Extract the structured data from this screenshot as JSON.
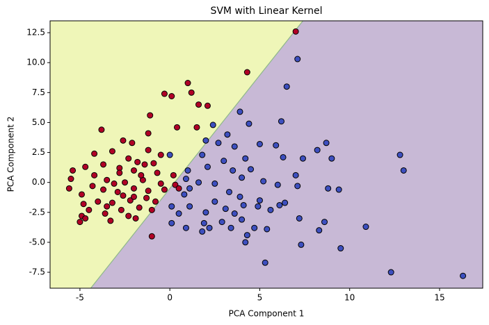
{
  "chart_data": {
    "type": "scatter",
    "title": "SVM with Linear Kernel",
    "x_label": "PCA Component 1",
    "y_label": "PCA Component 2",
    "xlim": [
      -6.66,
      17.4
    ],
    "ylim": [
      -8.83,
      13.49
    ],
    "xticks": [
      -5,
      0,
      5,
      10,
      15
    ],
    "yticks": [
      -7.5,
      {
        "value": -5,
        "label": "-5.0"
      },
      -2.5,
      {
        "value": 0,
        "label": "0.0"
      },
      2.5,
      {
        "value": 5,
        "label": "5.0"
      },
      7.5,
      {
        "value": 10,
        "label": "10.0"
      },
      12.5
    ],
    "decision_boundary": {
      "x": [
        -4.4,
        7.4
      ],
      "y": [
        -8.83,
        13.49
      ],
      "color": "#8fb88a"
    },
    "region_colors": [
      "#eff6b8",
      "#c8b9d6"
    ],
    "series": [
      {
        "color": "#b10026",
        "x": [
          7.0,
          4.3,
          1.0,
          -0.3,
          0.1,
          1.2,
          1.6,
          2.1,
          -1.1,
          -3.8,
          -1.2,
          0.4,
          1.5,
          -2.1,
          -2.6,
          -1.2,
          -4.2,
          -3.2,
          -2.3,
          -0.5,
          -1.4,
          -3.7,
          -4.7,
          -5.4,
          -2.8,
          -2.0,
          -0.7,
          0.2,
          -5.5,
          -4.2,
          -3.5,
          -2.5,
          -1.5,
          -0.5,
          0.3,
          -5.6,
          -4.9,
          -3.7,
          -2.9,
          -2.0,
          -1.2,
          -0.3,
          0.5,
          -4.8,
          -4.0,
          -3.2,
          -2.2,
          -1.3,
          -0.8,
          -4.5,
          -3.6,
          -2.7,
          -1.7,
          -4.9,
          -4.7,
          -5.0,
          -3.3,
          -2.3,
          -1.9,
          -3.5,
          -2.0,
          -1.0,
          -1.0,
          -2.8,
          -1.8,
          -0.9,
          -3.1,
          -4.3,
          -2.6,
          -1.6
        ],
        "y": [
          12.6,
          9.2,
          8.3,
          7.4,
          7.2,
          7.5,
          6.5,
          6.4,
          5.6,
          4.4,
          4.1,
          4.6,
          4.6,
          3.3,
          3.5,
          2.7,
          2.4,
          2.6,
          2.0,
          2.3,
          1.5,
          1.5,
          1.3,
          1.0,
          1.2,
          1.0,
          0.8,
          0.6,
          0.3,
          0.6,
          0.2,
          0.0,
          0.2,
          -0.1,
          -0.2,
          -0.5,
          -1.0,
          -0.6,
          -0.8,
          -0.5,
          -0.7,
          -0.6,
          -0.5,
          -1.8,
          -1.6,
          -1.7,
          -1.5,
          -1.3,
          -1.6,
          -2.3,
          -2.6,
          -2.3,
          -2.1,
          -2.8,
          -3.0,
          -3.3,
          -3.2,
          -2.8,
          -3.0,
          -2.0,
          -1.2,
          -2.3,
          -4.5,
          0.8,
          1.7,
          1.6,
          -0.1,
          -0.3,
          -1.1,
          0.6
        ]
      },
      {
        "color": "#3d4fbf",
        "x": [
          7.1,
          6.5,
          3.9,
          4.4,
          2.4,
          6.2,
          3.2,
          2.0,
          5.0,
          5.9,
          8.7,
          8.2,
          9.0,
          3.6,
          2.7,
          1.8,
          0.0,
          6.3,
          7.4,
          4.2,
          12.8,
          13.0,
          3.0,
          2.1,
          1.0,
          4.5,
          7.0,
          4.0,
          5.2,
          2.5,
          1.1,
          3.3,
          6.0,
          7.1,
          8.8,
          9.4,
          0.8,
          3.9,
          5.0,
          4.1,
          2.5,
          6.4,
          6.1,
          0.1,
          1.1,
          3.1,
          4.9,
          5.6,
          0.5,
          2.0,
          3.6,
          2.9,
          1.9,
          4.0,
          0.1,
          0.9,
          2.2,
          3.4,
          4.7,
          5.4,
          1.8,
          4.3,
          4.2,
          7.2,
          8.6,
          8.3,
          10.9,
          7.3,
          9.5,
          5.3,
          12.3,
          16.3,
          0.9,
          1.6,
          3.5
        ],
        "y": [
          10.3,
          8.0,
          5.9,
          4.9,
          4.8,
          5.1,
          4.0,
          3.5,
          3.2,
          3.1,
          3.3,
          2.7,
          2.0,
          3.0,
          3.3,
          2.3,
          2.3,
          2.1,
          2.0,
          2.0,
          2.3,
          1.0,
          1.8,
          1.3,
          1.0,
          1.1,
          0.6,
          0.4,
          0.1,
          -0.1,
          -0.5,
          -0.8,
          -0.2,
          -0.3,
          -0.5,
          -0.6,
          -1.0,
          -1.2,
          -1.5,
          -1.9,
          -1.6,
          -1.7,
          -1.9,
          -2.0,
          -2.0,
          -2.2,
          -2.0,
          -2.3,
          -2.6,
          -2.5,
          -2.6,
          -3.3,
          -3.4,
          -3.1,
          -3.4,
          -3.8,
          -3.8,
          -3.8,
          -3.8,
          -3.9,
          -4.1,
          -4.4,
          -5.0,
          -3.0,
          -3.3,
          -4.0,
          -3.7,
          -5.2,
          -5.5,
          -6.7,
          -7.5,
          -7.8,
          0.3,
          0.0,
          1.0
        ]
      }
    ]
  }
}
